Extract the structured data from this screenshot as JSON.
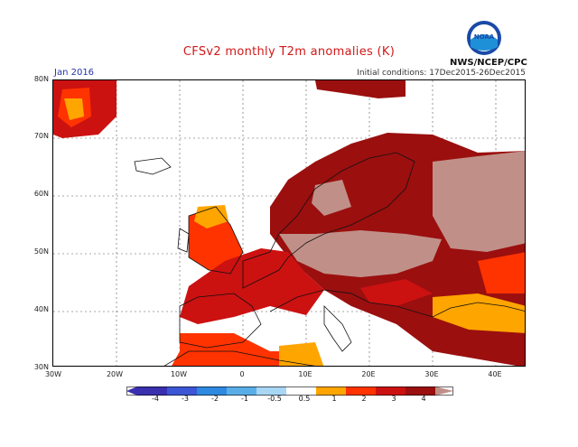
{
  "title": "CFSv2 monthly T2m anomalies (K)",
  "period": "Jan 2016",
  "initial_conditions": "Initial conditions: 17Dec2015-26Dec2015",
  "agency": "NWS/NCEP/CPC",
  "logo_text": "NOAA",
  "colors": {
    "a05_1": "#ffa500",
    "a1_2": "#ff3300",
    "a2_3": "#cc1111",
    "a3_4": "#9b0f0f",
    "a4p": "#c09088",
    "land_line": "#111111"
  },
  "lat_ticks": [
    "80N",
    "70N",
    "60N",
    "50N",
    "40N",
    "30N"
  ],
  "lon_ticks": [
    "30W",
    "20W",
    "10W",
    "0",
    "10E",
    "20E",
    "30E",
    "40E"
  ],
  "colorbar": {
    "labels": [
      "-4",
      "-3",
      "-2",
      "-1",
      "-0.5",
      "0.5",
      "1",
      "2",
      "3",
      "4"
    ],
    "colors": [
      "#3a2fae",
      "#3c56d6",
      "#2f89e0",
      "#5aaee8",
      "#a8d6f5",
      "#ffffff",
      "#ffa500",
      "#ff3300",
      "#cc1111",
      "#9b0f0f",
      "#c09088"
    ]
  }
}
